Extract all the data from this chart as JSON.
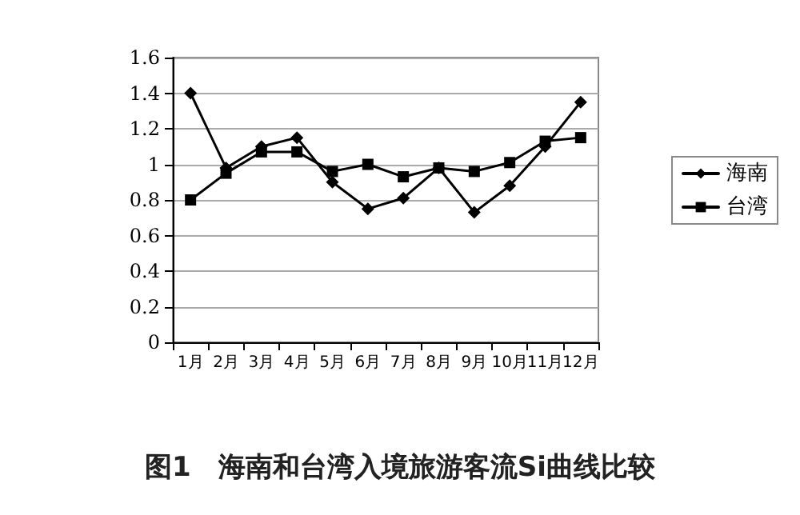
{
  "chart_data": {
    "type": "line",
    "title": "图1　海南和台湾入境旅游客流Si曲线比较",
    "categories": [
      "1月",
      "2月",
      "3月",
      "4月",
      "5月",
      "6月",
      "7月",
      "8月",
      "9月",
      "10月",
      "11月",
      "12月"
    ],
    "series": [
      {
        "name": "海南",
        "color": "#000000",
        "marker": "diamond",
        "values": [
          1.4,
          0.98,
          1.1,
          1.15,
          0.9,
          0.75,
          0.81,
          0.98,
          0.73,
          0.88,
          1.1,
          1.35
        ]
      },
      {
        "name": "台湾",
        "color": "#000000",
        "marker": "square",
        "values": [
          0.8,
          0.95,
          1.07,
          1.07,
          0.96,
          1.0,
          0.93,
          0.98,
          0.96,
          1.01,
          1.13,
          1.15
        ]
      }
    ],
    "ylim": [
      0,
      1.6
    ],
    "yticks": [
      0,
      0.2,
      0.4,
      0.6,
      0.8,
      1,
      1.2,
      1.4,
      1.6
    ],
    "grid": "y",
    "legend": "right",
    "line_style": "solid"
  }
}
